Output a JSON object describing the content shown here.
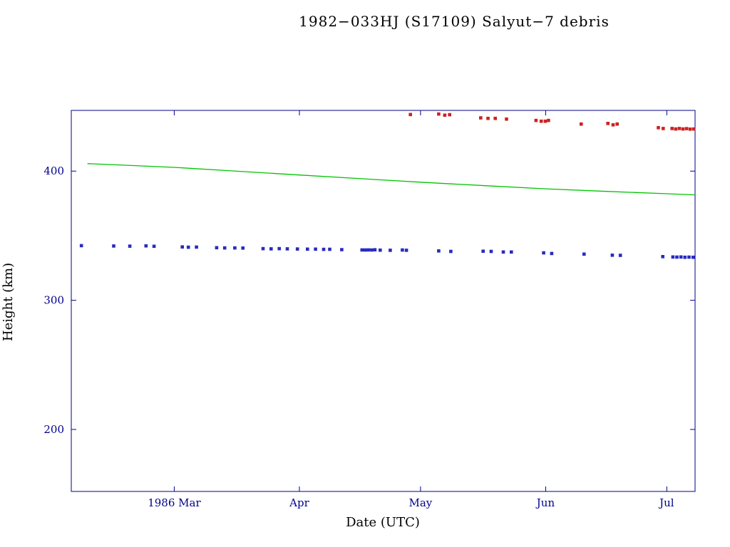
{
  "chart_data": {
    "type": "scatter",
    "title": "1982−033HJ (S17109) Salyut−7 debris",
    "xlabel": "Date (UTC)",
    "ylabel": "Height (km)",
    "x_unit": "days since 1986-02-01",
    "xlim": [
      2.5,
      157
    ],
    "ylim": [
      152,
      447
    ],
    "grid": false,
    "legend": null,
    "colors": {
      "frame": "#00008b",
      "text": "#00008b",
      "title": "#00008b"
    },
    "xticks": [
      {
        "value": 28,
        "label": "1986 Mar"
      },
      {
        "value": 59,
        "label": "Apr"
      },
      {
        "value": 89,
        "label": "May"
      },
      {
        "value": 120,
        "label": "Jun"
      },
      {
        "value": 150,
        "label": "Jul"
      }
    ],
    "yticks": [
      {
        "value": 200,
        "label": "200"
      },
      {
        "value": 300,
        "label": "300"
      },
      {
        "value": 400,
        "label": "400"
      }
    ],
    "series": [
      {
        "name": "apogee-height-red-squares",
        "type": "scatter",
        "marker": "square",
        "color": "#cc2222",
        "points": [
          [
            86.5,
            443.8
          ],
          [
            93.5,
            444.2
          ],
          [
            95,
            443.3
          ],
          [
            96.2,
            443.7
          ],
          [
            103.9,
            441.2
          ],
          [
            105.7,
            440.8
          ],
          [
            107.5,
            440.8
          ],
          [
            110.3,
            440.3
          ],
          [
            117.6,
            439.2
          ],
          [
            118.9,
            438.6
          ],
          [
            119.9,
            438.6
          ],
          [
            120.7,
            439.2
          ],
          [
            128.8,
            436.4
          ],
          [
            135.4,
            436.9
          ],
          [
            136.7,
            435.8
          ],
          [
            137.7,
            436.4
          ],
          [
            147.9,
            433.6
          ],
          [
            149.1,
            433.0
          ],
          [
            151.3,
            433.0
          ],
          [
            152.2,
            432.6
          ],
          [
            153.1,
            433.0
          ],
          [
            154.0,
            432.6
          ],
          [
            154.9,
            432.9
          ],
          [
            155.8,
            432.5
          ],
          [
            156.7,
            432.6
          ]
        ]
      },
      {
        "name": "mean-height-green-line",
        "type": "line",
        "color": "#00c400",
        "points": [
          [
            6.5,
            405.8
          ],
          [
            20,
            404.0
          ],
          [
            28,
            402.9
          ],
          [
            40,
            400.6
          ],
          [
            59,
            397.0
          ],
          [
            75,
            394.0
          ],
          [
            89,
            391.4
          ],
          [
            105,
            388.7
          ],
          [
            120,
            386.3
          ],
          [
            135,
            384.3
          ],
          [
            150,
            382.5
          ],
          [
            157,
            381.6
          ]
        ]
      },
      {
        "name": "perigee-height-blue-squares",
        "type": "scatter",
        "marker": "square",
        "color": "#2a2ac0",
        "points": [
          [
            5,
            342.3
          ],
          [
            13,
            342.0
          ],
          [
            17,
            341.9
          ],
          [
            21,
            342.1
          ],
          [
            23,
            341.8
          ],
          [
            30,
            341.3
          ],
          [
            31.5,
            341.1
          ],
          [
            33.5,
            341.2
          ],
          [
            38.5,
            340.7
          ],
          [
            40.5,
            340.5
          ],
          [
            43,
            340.5
          ],
          [
            45,
            340.4
          ],
          [
            50,
            340.0
          ],
          [
            52,
            339.8
          ],
          [
            54,
            340.0
          ],
          [
            56,
            339.8
          ],
          [
            58.5,
            339.7
          ],
          [
            61,
            339.6
          ],
          [
            63,
            339.6
          ],
          [
            65,
            339.4
          ],
          [
            66.5,
            339.5
          ],
          [
            69.5,
            339.2
          ],
          [
            74.5,
            339.0
          ],
          [
            75.3,
            338.9
          ],
          [
            76.1,
            339.0
          ],
          [
            76.9,
            338.9
          ],
          [
            77.7,
            339.1
          ],
          [
            79,
            338.8
          ],
          [
            81.5,
            338.7
          ],
          [
            84.5,
            338.9
          ],
          [
            85.5,
            338.7
          ],
          [
            93.5,
            338.2
          ],
          [
            96.5,
            337.8
          ],
          [
            104.5,
            338.0
          ],
          [
            106.5,
            337.8
          ],
          [
            109.5,
            337.4
          ],
          [
            111.5,
            337.4
          ],
          [
            119.5,
            336.7
          ],
          [
            121.5,
            336.2
          ],
          [
            129.5,
            335.7
          ],
          [
            136.5,
            334.9
          ],
          [
            138.5,
            334.8
          ],
          [
            149,
            333.8
          ],
          [
            151.5,
            333.5
          ],
          [
            152.5,
            333.4
          ],
          [
            153.5,
            333.5
          ],
          [
            154.5,
            333.3
          ],
          [
            155.5,
            333.4
          ],
          [
            156.5,
            333.3
          ]
        ]
      }
    ]
  }
}
